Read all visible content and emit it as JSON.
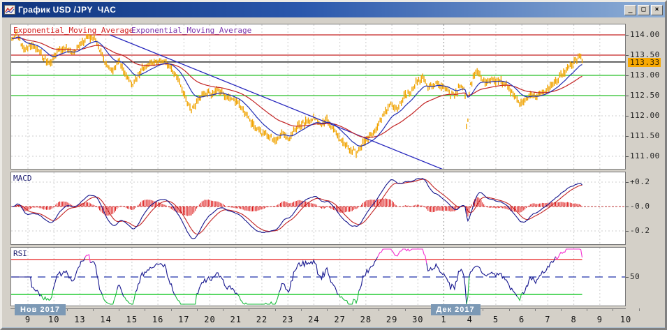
{
  "window": {
    "title": "График USD /JPY  ЧАС",
    "controls": {
      "minimize": "_",
      "maximize": "□",
      "close": "×"
    }
  },
  "chart_data": {
    "type": "candlestick",
    "instrument": "USD/JPY",
    "timeframe_label": "ЧАС",
    "price_panel": {
      "ema_labels": [
        "Exponential_Moving_Average",
        "Exponential_Moving_Average"
      ],
      "y_ticks": [
        "114.00",
        "113.50",
        "113.00",
        "112.50",
        "112.00",
        "111.50",
        "111.00"
      ],
      "y_tick_values": [
        114.0,
        113.5,
        113.0,
        112.5,
        112.0,
        111.5,
        111.0
      ],
      "current_price": "113.33",
      "current_price_value": 113.33,
      "levels": [
        {
          "value": 114.0,
          "color": "#c32222"
        },
        {
          "value": 113.5,
          "color": "#c32222"
        },
        {
          "value": 113.0,
          "color": "#28bf28"
        },
        {
          "value": 112.5,
          "color": "#28bf28"
        }
      ],
      "trendline": {
        "x1": 0.16,
        "p1": 114.0,
        "x2": 0.712,
        "p2": 110.62
      },
      "price_keypoints": [
        [
          0.0,
          113.9
        ],
        [
          0.008,
          114.05
        ],
        [
          0.02,
          113.62
        ],
        [
          0.034,
          113.76
        ],
        [
          0.05,
          113.48
        ],
        [
          0.062,
          113.28
        ],
        [
          0.074,
          113.58
        ],
        [
          0.088,
          113.66
        ],
        [
          0.1,
          113.52
        ],
        [
          0.112,
          113.78
        ],
        [
          0.126,
          113.96
        ],
        [
          0.138,
          113.82
        ],
        [
          0.15,
          113.38
        ],
        [
          0.162,
          113.12
        ],
        [
          0.174,
          113.34
        ],
        [
          0.188,
          112.96
        ],
        [
          0.198,
          112.76
        ],
        [
          0.21,
          113.12
        ],
        [
          0.222,
          113.24
        ],
        [
          0.236,
          113.32
        ],
        [
          0.248,
          113.36
        ],
        [
          0.26,
          113.18
        ],
        [
          0.272,
          112.9
        ],
        [
          0.284,
          112.4
        ],
        [
          0.294,
          112.14
        ],
        [
          0.306,
          112.48
        ],
        [
          0.32,
          112.56
        ],
        [
          0.336,
          112.6
        ],
        [
          0.352,
          112.46
        ],
        [
          0.366,
          112.36
        ],
        [
          0.38,
          112.06
        ],
        [
          0.392,
          111.78
        ],
        [
          0.404,
          111.6
        ],
        [
          0.416,
          111.52
        ],
        [
          0.428,
          111.38
        ],
        [
          0.44,
          111.58
        ],
        [
          0.452,
          111.46
        ],
        [
          0.466,
          111.72
        ],
        [
          0.48,
          111.86
        ],
        [
          0.492,
          111.94
        ],
        [
          0.504,
          111.78
        ],
        [
          0.514,
          111.9
        ],
        [
          0.526,
          111.62
        ],
        [
          0.538,
          111.38
        ],
        [
          0.55,
          111.2
        ],
        [
          0.562,
          111.1
        ],
        [
          0.574,
          111.38
        ],
        [
          0.586,
          111.52
        ],
        [
          0.598,
          111.78
        ],
        [
          0.608,
          112.08
        ],
        [
          0.618,
          112.32
        ],
        [
          0.628,
          112.14
        ],
        [
          0.638,
          112.46
        ],
        [
          0.648,
          112.56
        ],
        [
          0.658,
          112.8
        ],
        [
          0.67,
          112.92
        ],
        [
          0.68,
          112.68
        ],
        [
          0.692,
          112.8
        ],
        [
          0.702,
          112.72
        ],
        [
          0.712,
          112.58
        ],
        [
          0.722,
          112.52
        ],
        [
          0.732,
          112.76
        ],
        [
          0.739,
          112.62
        ],
        [
          0.742,
          111.48
        ],
        [
          0.746,
          112.66
        ],
        [
          0.753,
          112.98
        ],
        [
          0.759,
          113.1
        ],
        [
          0.766,
          112.92
        ],
        [
          0.773,
          112.8
        ],
        [
          0.781,
          112.92
        ],
        [
          0.789,
          112.82
        ],
        [
          0.796,
          112.9
        ],
        [
          0.804,
          112.78
        ],
        [
          0.813,
          112.6
        ],
        [
          0.822,
          112.42
        ],
        [
          0.83,
          112.28
        ],
        [
          0.838,
          112.4
        ],
        [
          0.847,
          112.52
        ],
        [
          0.855,
          112.44
        ],
        [
          0.863,
          112.56
        ],
        [
          0.871,
          112.64
        ],
        [
          0.88,
          112.76
        ],
        [
          0.888,
          112.88
        ],
        [
          0.896,
          113.0
        ],
        [
          0.904,
          113.14
        ],
        [
          0.912,
          113.26
        ],
        [
          0.92,
          113.4
        ],
        [
          0.926,
          113.46
        ],
        [
          0.93,
          113.33
        ]
      ],
      "data_end_frac": 0.93
    },
    "macd_panel": {
      "label": "MACD",
      "y_ticks": [
        "+0.2",
        "-0.0",
        "-0.2"
      ],
      "y_tick_values": [
        0.2,
        0.0,
        -0.2
      ]
    },
    "rsi_panel": {
      "label": "RSI",
      "y_ticks": [
        "50"
      ],
      "y_tick_values": [
        50
      ],
      "overbought": 70,
      "oversold": 30,
      "midline": 50
    },
    "x_axis": {
      "days": [
        "9",
        "10",
        "13",
        "14",
        "15",
        "16",
        "17",
        "20",
        "21",
        "22",
        "23",
        "24",
        "27",
        "28",
        "29",
        "30",
        "1",
        "4",
        "5",
        "6",
        "7",
        "8",
        "9",
        "10"
      ],
      "month_badges": [
        {
          "text": "Нов 2017",
          "day_index": 0
        },
        {
          "text": "Дек 2017",
          "day_index": 16
        }
      ],
      "month_boundary_index": 16
    }
  },
  "colors": {
    "bars": "#f0a300",
    "ema_fast": "#2230b4",
    "ema_slow": "#c32424",
    "trendline": "#2626bd",
    "price_line": "#000000",
    "badge_bg": "#f7a800",
    "grid": "#cdcdcd",
    "grid_dark": "#8f8f8f",
    "macd_line": "#16168c",
    "macd_signal": "#c32424",
    "macd_hist": "#dd1414",
    "macd_zero": "#bb3333",
    "rsi_line": "#17178f",
    "rsi_overbought_line": "#e81f1f",
    "rsi_oversold_line": "#24cc33",
    "rsi_mid_line": "#2233aa",
    "rsi_hot": "#f531cf",
    "rsi_cold": "#17b93a",
    "ema_label_1": "#d41f1f",
    "ema_label_2": "#7a35ad",
    "pane_label": "#1a1a6e",
    "month_badge_bg": "#7c99b5"
  }
}
